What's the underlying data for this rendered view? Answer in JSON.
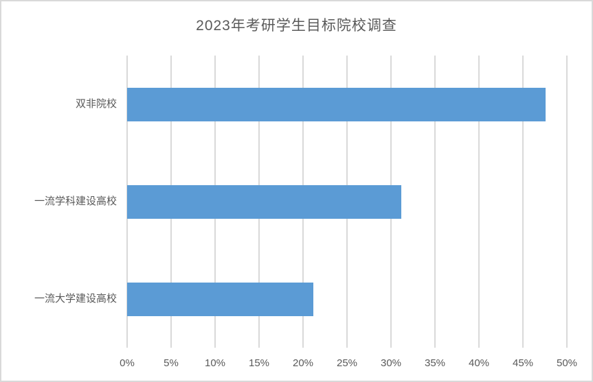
{
  "chart_data": {
    "type": "bar",
    "orientation": "horizontal",
    "title": "2023年考研学生目标院校调查",
    "categories": [
      "双非院校",
      "一流学科建设高校",
      "一流大学建设高校"
    ],
    "values": [
      47.6,
      31.2,
      21.2
    ],
    "value_unit": "%",
    "x_tick_labels": [
      "0%",
      "5%",
      "10%",
      "15%",
      "20%",
      "25%",
      "30%",
      "35%",
      "40%",
      "45%",
      "50%"
    ],
    "xlim": [
      0,
      50
    ],
    "xlabel": "",
    "ylabel": "",
    "legend": "none",
    "grid": "vertical",
    "colors": {
      "bar": "#5B9BD5",
      "gridline": "#D9D9D9",
      "text": "#595959",
      "frame_border": "#D9D9D9",
      "background": "#FFFFFF"
    }
  }
}
